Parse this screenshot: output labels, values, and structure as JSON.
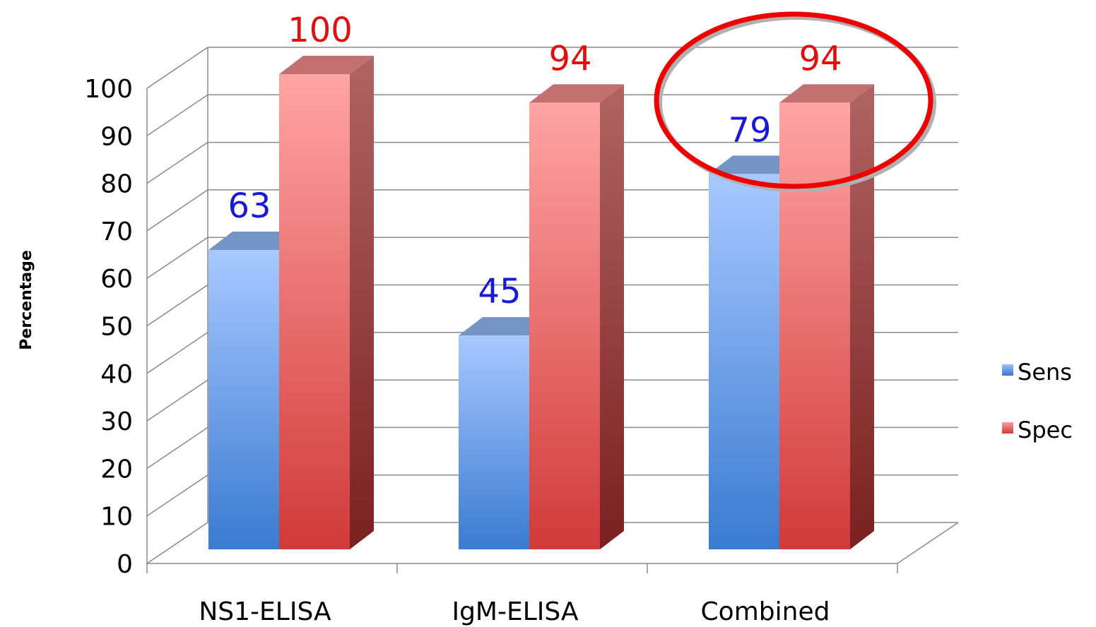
{
  "chart_data": {
    "type": "bar",
    "style": "3d-clustered-column",
    "categories": [
      "NS1-ELISA",
      "IgM-ELISA",
      "Combined"
    ],
    "series": [
      {
        "name": "Sens",
        "values": [
          63,
          45,
          79
        ],
        "color": "#4f86d6",
        "label_color": "#1a1ad6"
      },
      {
        "name": "Spec",
        "values": [
          100,
          94,
          94
        ],
        "color": "#e05555",
        "label_color": "#e01010"
      }
    ],
    "data_labels": [
      [
        "63",
        "45",
        "79"
      ],
      [
        "100",
        "94",
        "94"
      ]
    ],
    "yticks": [
      "0",
      "10",
      "20",
      "30",
      "40",
      "50",
      "60",
      "70",
      "80",
      "90",
      "100"
    ],
    "ylabel": "Percentage",
    "ylim": [
      0,
      100
    ],
    "grid": true,
    "legend": {
      "position": "right",
      "entries": [
        "Sens",
        "Spec"
      ]
    },
    "annotation": {
      "type": "ellipse",
      "target_category": "Combined",
      "color": "#ee0000"
    }
  }
}
